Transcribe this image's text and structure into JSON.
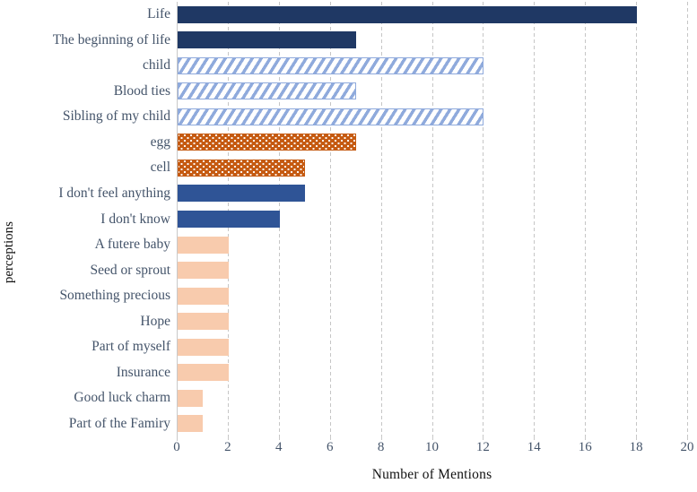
{
  "chart_data": {
    "type": "bar",
    "orientation": "horizontal",
    "title": "",
    "xlabel": "Number of Mentions",
    "ylabel": "perceptions",
    "xlim": [
      0,
      20
    ],
    "xticks": [
      0,
      2,
      4,
      6,
      8,
      10,
      12,
      14,
      16,
      18,
      20
    ],
    "grid": "vertical-dashed",
    "legend": "none",
    "categories": [
      "Life",
      "The beginning of life",
      "child",
      "Blood ties",
      "Sibling of my child",
      "egg",
      "cell",
      "I don't feel anything",
      "I don't know",
      "A futere baby",
      "Seed or sprout",
      "Something precious",
      "Hope",
      "Part of myself",
      "Insurance",
      "Good luck charm",
      "Part of the Famiry"
    ],
    "values": [
      18,
      7,
      12,
      7,
      12,
      7,
      5,
      5,
      4,
      2,
      2,
      2,
      2,
      2,
      2,
      1,
      1
    ],
    "bar_styles": [
      "navy-solid",
      "navy-solid",
      "blue-hatch",
      "blue-hatch",
      "blue-hatch",
      "orange-dots",
      "orange-dots",
      "blue-solid",
      "blue-solid",
      "peach-solid",
      "peach-solid",
      "peach-solid",
      "peach-solid",
      "peach-solid",
      "peach-solid",
      "peach-solid",
      "peach-solid"
    ],
    "style_defs": {
      "navy-solid": {
        "kind": "solid",
        "fill": "#1F3864"
      },
      "blue-hatch": {
        "kind": "hatch",
        "fill": "#FFFFFF",
        "hatch_color": "#8FAADC",
        "border": "#8FAADC"
      },
      "orange-dots": {
        "kind": "dots",
        "fill": "#C55A11",
        "dot_color": "#FFFFFF",
        "border": "#C55A11"
      },
      "blue-solid": {
        "kind": "solid",
        "fill": "#2F5496"
      },
      "peach-solid": {
        "kind": "solid",
        "fill": "#F8CBAD"
      }
    },
    "colors": {
      "grid": "#C6C6C6",
      "axis": "#C9C9C9",
      "tick_label": "#44546A",
      "category_label": "#44546A",
      "axis_title": "#111111",
      "background": "#FFFFFF"
    }
  }
}
